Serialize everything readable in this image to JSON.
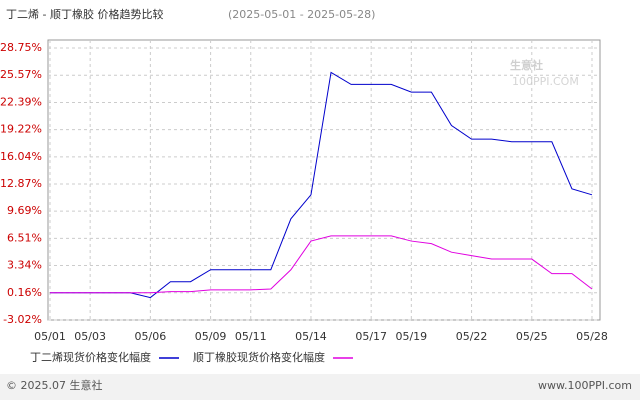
{
  "chart_data": {
    "type": "line",
    "title": "丁二烯 - 顺丁橡胶 价格趋势比较",
    "subtitle": "(2025-05-01 - 2025-05-28)",
    "watermark": "生意社",
    "watermark_sub": "100PPI.COM",
    "categories": [
      "05/01",
      null,
      "05/03",
      null,
      null,
      "05/06",
      null,
      null,
      "05/09",
      null,
      "05/11",
      null,
      null,
      "05/14",
      null,
      null,
      "05/17",
      null,
      "05/19",
      null,
      null,
      "05/22",
      null,
      null,
      "05/25",
      null,
      null,
      "05/28"
    ],
    "series": [
      {
        "name": "丁二烯现货价格变化幅度",
        "color": "#0000cc",
        "values": [
          0.16,
          0.16,
          0.16,
          0.16,
          0.16,
          -0.4,
          1.45,
          1.45,
          2.85,
          2.85,
          2.85,
          2.85,
          8.8,
          11.6,
          25.9,
          24.5,
          24.5,
          24.5,
          23.6,
          23.6,
          19.7,
          18.1,
          18.1,
          17.8,
          17.8,
          17.8,
          12.3,
          11.6
        ]
      },
      {
        "name": "顺丁橡胶现货价格变化幅度",
        "color": "#e000e0",
        "values": [
          0.16,
          0.16,
          0.16,
          0.16,
          0.16,
          0.16,
          0.3,
          0.3,
          0.5,
          0.5,
          0.5,
          0.6,
          2.85,
          6.2,
          6.8,
          6.8,
          6.8,
          6.8,
          6.2,
          5.9,
          4.9,
          4.5,
          4.1,
          4.1,
          4.1,
          2.4,
          2.4,
          0.6
        ]
      }
    ],
    "ylim": [
      -3.02,
      28.75
    ],
    "yticks": [
      {
        "value": -3.02,
        "label": "-3.02%"
      },
      {
        "value": 0.16,
        "label": "0.16%"
      },
      {
        "value": 3.34,
        "label": "3.34%"
      },
      {
        "value": 6.51,
        "label": "6.51%"
      },
      {
        "value": 9.69,
        "label": "9.69%"
      },
      {
        "value": 12.87,
        "label": "12.87%"
      },
      {
        "value": 16.04,
        "label": "16.04%"
      },
      {
        "value": 19.22,
        "label": "19.22%"
      },
      {
        "value": 22.39,
        "label": "22.39%"
      },
      {
        "value": 25.57,
        "label": "25.57%"
      },
      {
        "value": 28.75,
        "label": "28.75%"
      }
    ],
    "grid": true,
    "footer_left": "© 2025.07 生意社",
    "footer_right": "www.100PPI.com"
  }
}
